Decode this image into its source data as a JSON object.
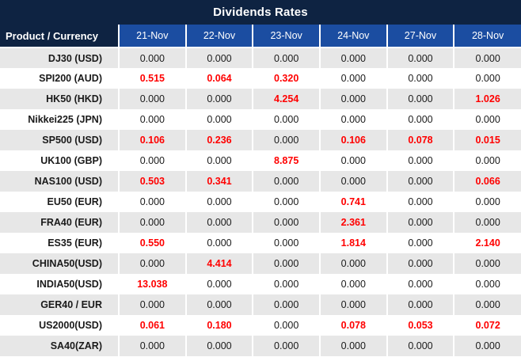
{
  "title": "Dividends Rates",
  "colors": {
    "title_bar_bg": "#0e2342",
    "header_bg": "#1b4da1",
    "header_text": "#ffffff",
    "row_bg": "#ffffff",
    "row_alt_bg": "#e7e7e7",
    "grid_line": "#ffffff",
    "value_zero": "#1a1a1a",
    "value_nonzero": "#ff0000"
  },
  "chart_data": {
    "type": "table",
    "title": "Dividends Rates",
    "row_header_label": "Product / Currency",
    "columns": [
      "21-Nov",
      "22-Nov",
      "23-Nov",
      "24-Nov",
      "27-Nov",
      "28-Nov"
    ],
    "rows": [
      {
        "product": "DJ30 (USD)",
        "values": [
          "0.000",
          "0.000",
          "0.000",
          "0.000",
          "0.000",
          "0.000"
        ]
      },
      {
        "product": "SPI200 (AUD)",
        "values": [
          "0.515",
          "0.064",
          "0.320",
          "0.000",
          "0.000",
          "0.000"
        ]
      },
      {
        "product": "HK50 (HKD)",
        "values": [
          "0.000",
          "0.000",
          "4.254",
          "0.000",
          "0.000",
          "1.026"
        ]
      },
      {
        "product": "Nikkei225 (JPN)",
        "values": [
          "0.000",
          "0.000",
          "0.000",
          "0.000",
          "0.000",
          "0.000"
        ]
      },
      {
        "product": "SP500 (USD)",
        "values": [
          "0.106",
          "0.236",
          "0.000",
          "0.106",
          "0.078",
          "0.015"
        ]
      },
      {
        "product": "UK100 (GBP)",
        "values": [
          "0.000",
          "0.000",
          "8.875",
          "0.000",
          "0.000",
          "0.000"
        ]
      },
      {
        "product": "NAS100 (USD)",
        "values": [
          "0.503",
          "0.341",
          "0.000",
          "0.000",
          "0.000",
          "0.066"
        ]
      },
      {
        "product": "EU50 (EUR)",
        "values": [
          "0.000",
          "0.000",
          "0.000",
          "0.741",
          "0.000",
          "0.000"
        ]
      },
      {
        "product": "FRA40 (EUR)",
        "values": [
          "0.000",
          "0.000",
          "0.000",
          "2.361",
          "0.000",
          "0.000"
        ]
      },
      {
        "product": "ES35 (EUR)",
        "values": [
          "0.550",
          "0.000",
          "0.000",
          "1.814",
          "0.000",
          "2.140"
        ]
      },
      {
        "product": "CHINA50(USD)",
        "values": [
          "0.000",
          "4.414",
          "0.000",
          "0.000",
          "0.000",
          "0.000"
        ]
      },
      {
        "product": "INDIA50(USD)",
        "values": [
          "13.038",
          "0.000",
          "0.000",
          "0.000",
          "0.000",
          "0.000"
        ]
      },
      {
        "product": "GER40 / EUR",
        "values": [
          "0.000",
          "0.000",
          "0.000",
          "0.000",
          "0.000",
          "0.000"
        ]
      },
      {
        "product": "US2000(USD)",
        "values": [
          "0.061",
          "0.180",
          "0.000",
          "0.078",
          "0.053",
          "0.072"
        ]
      },
      {
        "product": "SA40(ZAR)",
        "values": [
          "0.000",
          "0.000",
          "0.000",
          "0.000",
          "0.000",
          "0.000"
        ]
      }
    ]
  }
}
